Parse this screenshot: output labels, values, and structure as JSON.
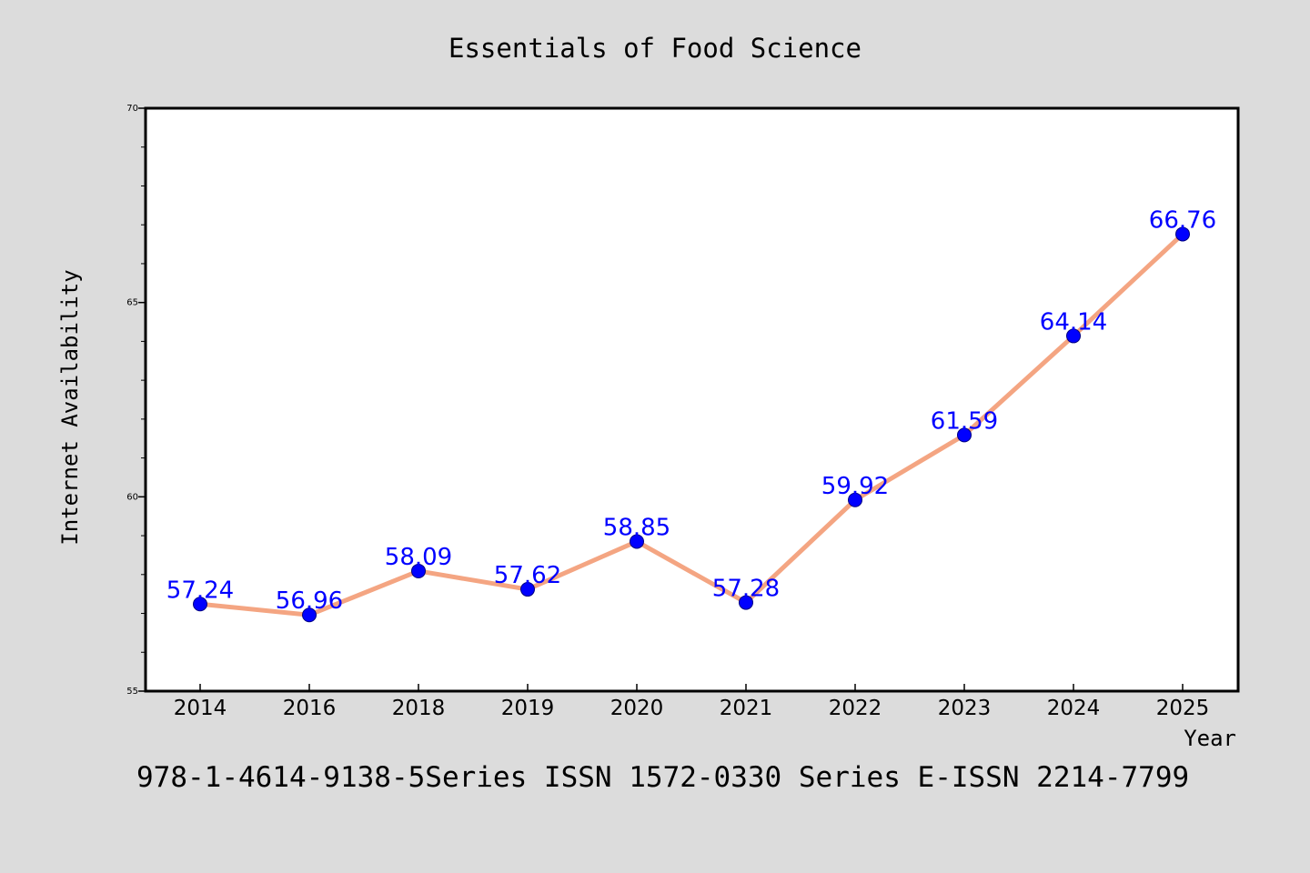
{
  "chart_data": {
    "type": "line",
    "title": "Essentials of Food Science",
    "xlabel": "Year",
    "ylabel": "Internet Availability",
    "categories": [
      "2014",
      "2016",
      "2018",
      "2019",
      "2020",
      "2021",
      "2022",
      "2023",
      "2024",
      "2025"
    ],
    "values": [
      57.24,
      56.96,
      58.09,
      57.62,
      58.85,
      57.28,
      59.92,
      61.59,
      64.14,
      66.76
    ],
    "data_labels": [
      "57.24",
      "56.96",
      "58.09",
      "57.62",
      "58.85",
      "57.28",
      "59.92",
      "61.59",
      "64.14",
      "66.76"
    ],
    "ylim": [
      55,
      70
    ],
    "yticks": [
      "55",
      "60",
      "65",
      "70"
    ],
    "grid": false,
    "line_color": "#f4a582",
    "marker_color": "#0000ff",
    "label_color": "#0000ff"
  },
  "footer": "978-1-4614-9138-5Series ISSN 1572-0330 Series E-ISSN 2214-7799"
}
